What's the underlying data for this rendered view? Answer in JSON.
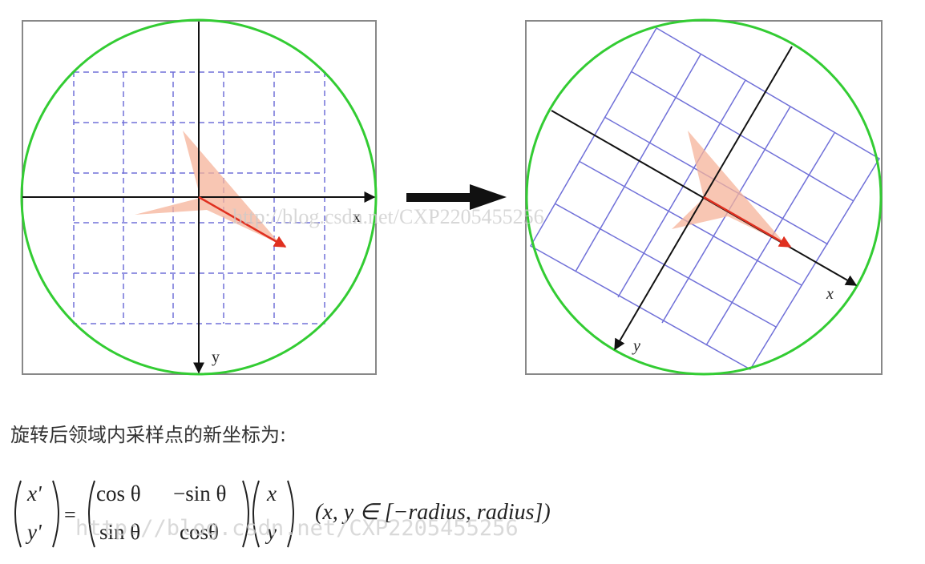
{
  "left_panel": {
    "x_label": "x",
    "y_label": "y"
  },
  "right_panel": {
    "x_label": "x",
    "y_label": "y"
  },
  "watermark": "http://blog.csdn.net/CXP2205455256",
  "caption": "旋转后领域内采样点的新坐标为:",
  "formula": {
    "lhs": [
      "x'",
      "y'"
    ],
    "equals": "=",
    "matrix": [
      [
        "cos θ",
        "−sin θ"
      ],
      [
        "sin θ",
        "cosθ"
      ]
    ],
    "vector": [
      "x",
      "y"
    ],
    "domain": "(x, y ∈ [−radius, radius])"
  },
  "colors": {
    "circle": "#33cc33",
    "grid": "#7070d8",
    "arrow": "#e03020",
    "shape": "#f6b39a"
  }
}
